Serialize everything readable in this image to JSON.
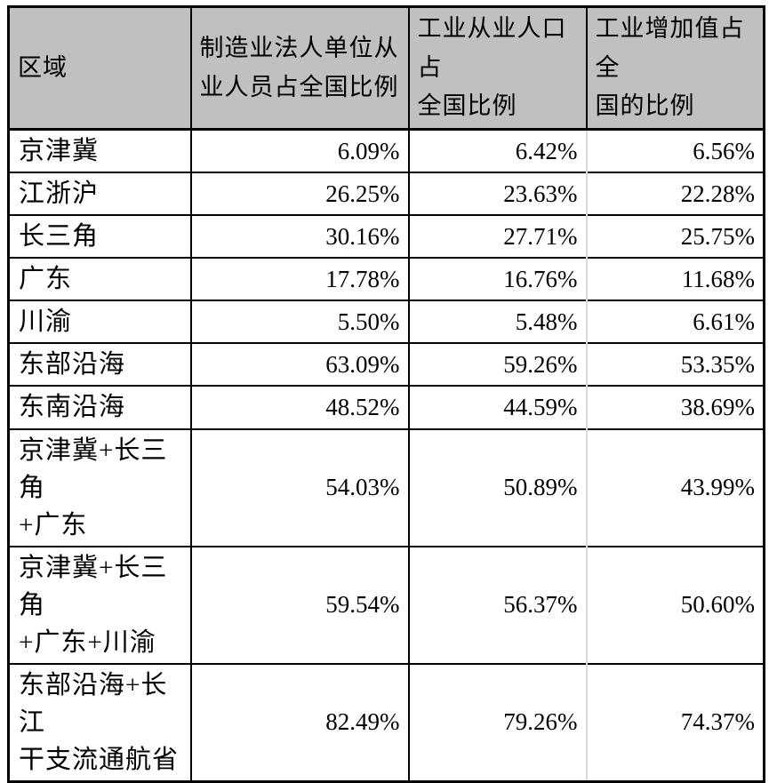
{
  "table": {
    "columns": [
      {
        "label": "区域"
      },
      {
        "label": "制造业法人单位从\n业人员占全国比例"
      },
      {
        "label": "工业从业人口占\n全国比例"
      },
      {
        "label": "工业增加值占全\n国的比例"
      }
    ],
    "rows": [
      {
        "region": "京津冀",
        "manufacturing": "6.09%",
        "industry_pop": "6.42%",
        "industry_value": "6.56%"
      },
      {
        "region": "江浙沪",
        "manufacturing": "26.25%",
        "industry_pop": "23.63%",
        "industry_value": "22.28%"
      },
      {
        "region": "长三角",
        "manufacturing": "30.16%",
        "industry_pop": "27.71%",
        "industry_value": "25.75%"
      },
      {
        "region": "广东",
        "manufacturing": "17.78%",
        "industry_pop": "16.76%",
        "industry_value": "11.68%"
      },
      {
        "region": "川渝",
        "manufacturing": "5.50%",
        "industry_pop": "5.48%",
        "industry_value": "6.61%"
      },
      {
        "region": "东部沿海",
        "manufacturing": "63.09%",
        "industry_pop": "59.26%",
        "industry_value": "53.35%"
      },
      {
        "region": "东南沿海",
        "manufacturing": "48.52%",
        "industry_pop": "44.59%",
        "industry_value": "38.69%"
      },
      {
        "region": "京津冀+长三角\n+广东",
        "manufacturing": "54.03%",
        "industry_pop": "50.89%",
        "industry_value": "43.99%"
      },
      {
        "region": "京津冀+长三角\n+广东+川渝",
        "manufacturing": "59.54%",
        "industry_pop": "56.37%",
        "industry_value": "50.60%"
      },
      {
        "region": "东部沿海+长江\n干支流通航省",
        "manufacturing": "82.49%",
        "industry_pop": "79.26%",
        "industry_value": "74.37%"
      }
    ]
  },
  "colors": {
    "header_bg": "#c0c0c0",
    "border": "#000000",
    "light_divider": "#d9d9d9",
    "text": "#000000"
  }
}
